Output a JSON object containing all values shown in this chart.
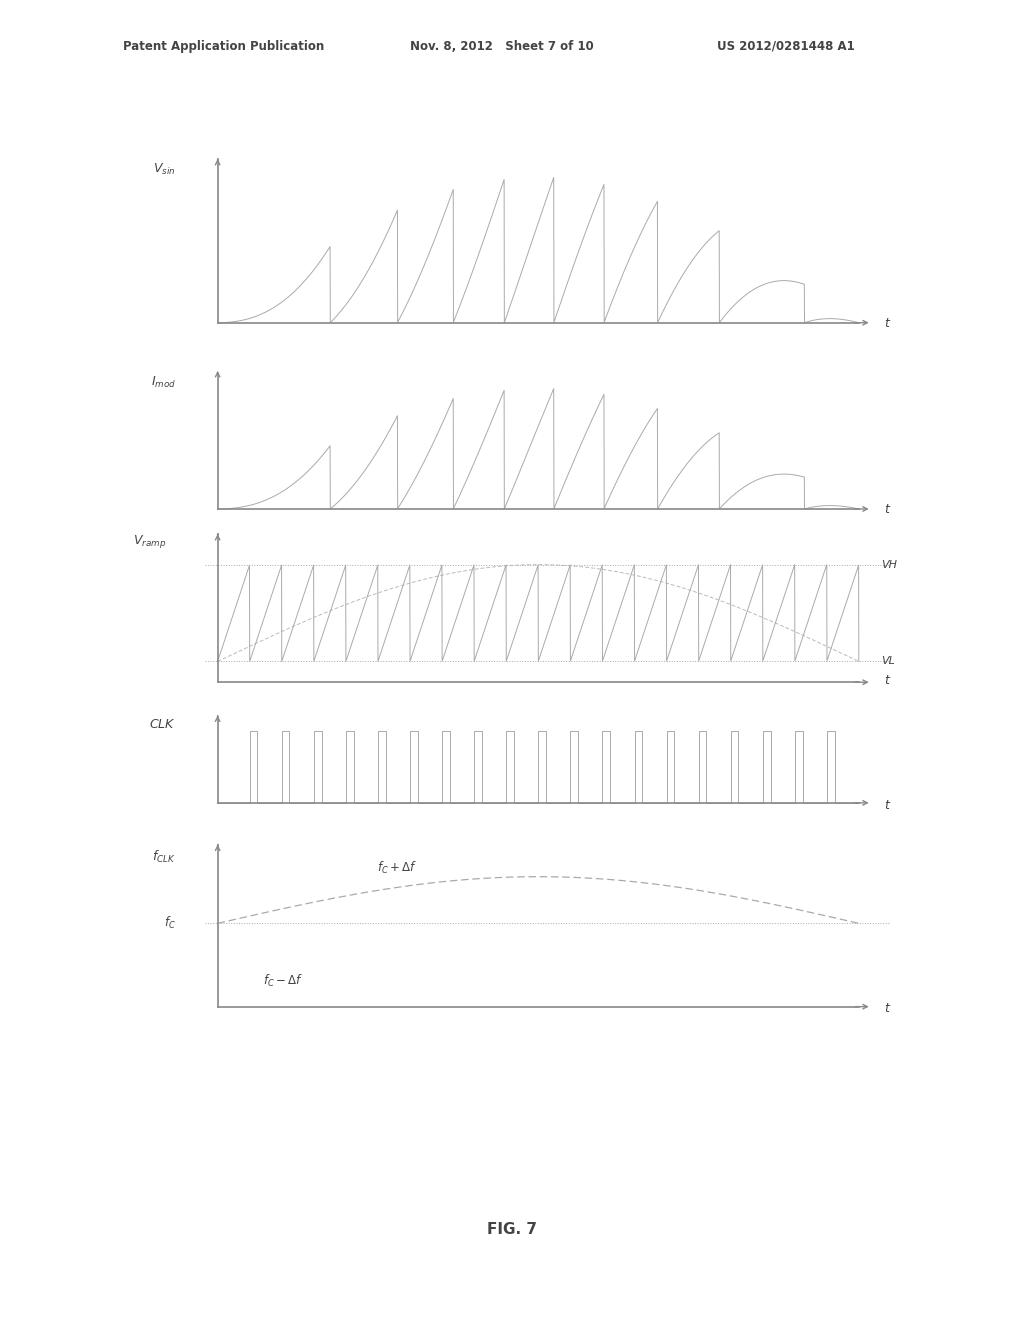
{
  "title": "FIG. 7",
  "header_left": "Patent Application Publication",
  "header_mid": "Nov. 8, 2012   Sheet 7 of 10",
  "header_right": "US 2012/0281448 A1",
  "bg_color": "#ffffff",
  "line_color": "#aaaaaa",
  "axis_color": "#888888",
  "text_color": "#555555",
  "label_color": "#444444",
  "header_line_color": "#bbbbbb"
}
